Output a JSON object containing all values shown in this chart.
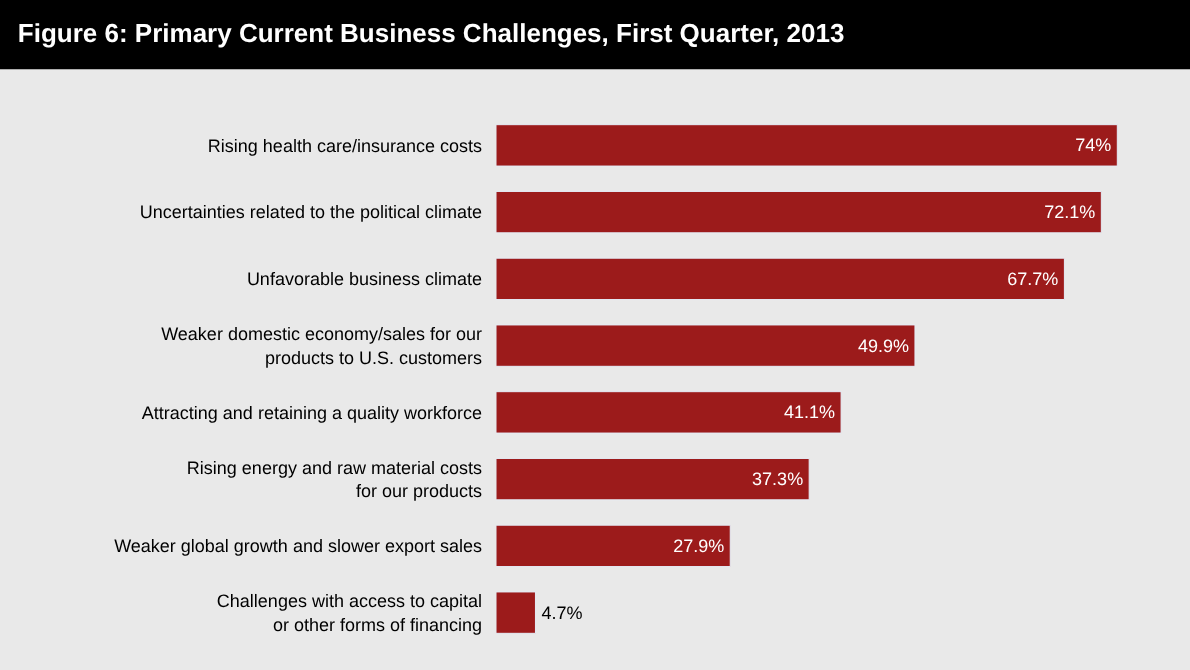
{
  "chart_data": {
    "type": "bar",
    "orientation": "horizontal",
    "title": "Figure 6: Primary Current Business Challenges, First Quarter, 2013",
    "categories": [
      "Rising health care/insurance costs",
      "Uncertainties related to the political climate",
      "Unfavorable business climate",
      "Weaker domestic economy/sales for our\nproducts to U.S. customers",
      "Attracting and retaining a quality workforce",
      "Rising energy and raw material costs\nfor our products",
      "Weaker global growth and slower export sales",
      "Challenges with access to capital\nor other forms of financing"
    ],
    "values": [
      74,
      72.1,
      67.7,
      49.9,
      41.1,
      37.3,
      27.9,
      4.7
    ],
    "value_labels": [
      "74%",
      "72.1%",
      "67.7%",
      "49.9%",
      "41.1%",
      "37.3%",
      "27.9%",
      "4.7%"
    ],
    "color": "#9c1b1b",
    "grid": false,
    "legend": false
  }
}
